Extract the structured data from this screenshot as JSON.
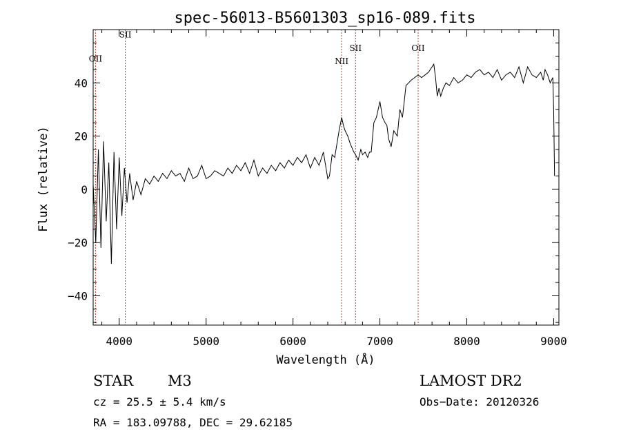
{
  "chart_data": {
    "type": "line",
    "title": "spec-56013-B5601303_sp16-089.fits",
    "xlabel": "Wavelength (Å)",
    "ylabel": "Flux (relative)",
    "xlim": [
      3700,
      9060
    ],
    "ylim": [
      -51,
      60
    ],
    "x_ticks": [
      4000,
      5000,
      6000,
      7000,
      8000,
      9000
    ],
    "x_tick_labels": [
      "4000",
      "5000",
      "6000",
      "7000",
      "8000",
      "9000"
    ],
    "y_ticks": [
      -40,
      -20,
      0,
      20,
      40
    ],
    "y_tick_labels": [
      "−40",
      "−20",
      "0",
      "20",
      "40"
    ],
    "grid": false,
    "line_markers": [
      {
        "label": "OII",
        "x": 3727,
        "label_y": 48
      },
      {
        "label": "SII",
        "x": 4070,
        "label_y": 57
      },
      {
        "label": "NII",
        "x": 6560,
        "label_y": 47
      },
      {
        "label": "SII",
        "x": 6720,
        "label_y": 52
      },
      {
        "label": "OII",
        "x": 7440,
        "label_y": 52
      }
    ],
    "series": [
      {
        "x": [
          3700,
          3730,
          3760,
          3790,
          3820,
          3850,
          3880,
          3910,
          3940,
          3970,
          4000,
          4030,
          4060,
          4090,
          4120,
          4160,
          4200,
          4250,
          4300,
          4350,
          4400,
          4450,
          4500,
          4550,
          4600,
          4650,
          4700,
          4750,
          4800,
          4850,
          4900,
          4950,
          5000,
          5050,
          5100,
          5150,
          5200,
          5250,
          5300,
          5350,
          5400,
          5450,
          5500,
          5550,
          5600,
          5650,
          5700,
          5750,
          5800,
          5850,
          5900,
          5950,
          6000,
          6050,
          6100,
          6150,
          6200,
          6250,
          6300,
          6350,
          6400,
          6420,
          6450,
          6480,
          6500,
          6530,
          6560,
          6580,
          6600,
          6630,
          6660,
          6700,
          6720,
          6750,
          6780,
          6800,
          6830,
          6860,
          6880,
          6900,
          6930,
          6960,
          6980,
          7000,
          7030,
          7060,
          7080,
          7100,
          7130,
          7160,
          7180,
          7200,
          7230,
          7260,
          7300,
          7330,
          7360,
          7400,
          7440,
          7480,
          7520,
          7560,
          7600,
          7620,
          7640,
          7660,
          7680,
          7700,
          7730,
          7760,
          7800,
          7850,
          7900,
          7950,
          8000,
          8050,
          8100,
          8150,
          8200,
          8250,
          8300,
          8350,
          8400,
          8450,
          8500,
          8550,
          8600,
          8650,
          8700,
          8750,
          8800,
          8850,
          8880,
          8900,
          8930,
          8960,
          8990,
          9000,
          9010
        ],
        "y": [
          2,
          -20,
          15,
          -22,
          18,
          -12,
          10,
          -28,
          14,
          -15,
          12,
          -10,
          8,
          -5,
          6,
          -4,
          3,
          -2,
          4,
          2,
          5,
          3,
          6,
          4,
          7,
          5,
          6,
          3,
          8,
          4,
          5,
          9,
          4,
          5,
          7,
          6,
          5,
          8,
          6,
          9,
          7,
          10,
          6,
          11,
          5,
          8,
          6,
          9,
          7,
          10,
          8,
          11,
          9,
          12,
          10,
          13,
          8,
          12,
          9,
          14,
          4,
          5,
          13,
          12,
          16,
          22,
          27,
          24,
          22,
          20,
          17,
          14,
          13,
          11,
          15,
          13,
          14,
          12,
          14,
          14,
          25,
          27,
          30,
          33,
          27,
          25,
          24,
          19,
          16,
          22,
          21,
          20,
          30,
          27,
          39,
          40,
          41,
          42,
          43,
          42,
          43,
          44,
          46,
          47,
          42,
          35,
          38,
          35,
          38,
          40,
          39,
          42,
          40,
          41,
          43,
          42,
          44,
          45,
          43,
          44,
          42,
          45,
          41,
          43,
          44,
          42,
          46,
          40,
          46,
          43,
          42,
          44,
          41,
          45,
          43,
          40,
          42,
          30,
          5
        ]
      }
    ]
  },
  "info": {
    "object_class": "STAR",
    "subclass": "M3",
    "survey": "LAMOST DR2",
    "cz": "cz = 25.5 ± 5.4 km/s",
    "obs_date": "Obs−Date: 20120326",
    "coords": "RA = 183.09788, DEC =  29.62185"
  },
  "colors": {
    "line": "#000000",
    "marker_line": "#c0392b"
  }
}
